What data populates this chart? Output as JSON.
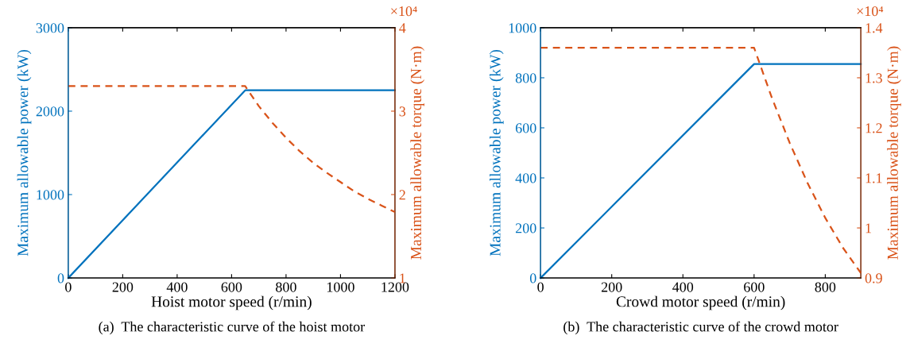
{
  "chart_data": [
    {
      "type": "line",
      "title": "(a)  The characteristic curve of the hoist motor",
      "xlabel": "Hoist motor speed (r/min)",
      "ylabel": "Maximum allowable power (kW)",
      "y2label": "Maximum allowable torque (N·m)",
      "annotations": [
        "×10⁴"
      ],
      "xlim": [
        0,
        1200
      ],
      "xticks": [
        0,
        200,
        400,
        600,
        800,
        1000,
        1200
      ],
      "ylim": [
        0,
        3000
      ],
      "yticks": [
        0,
        1000,
        2000,
        3000
      ],
      "y2lim": [
        1,
        4
      ],
      "y2ticks": [
        1,
        2,
        3,
        4
      ],
      "grid": false,
      "legend": false,
      "series": [
        {
          "color": "#0072bd",
          "line_style": "solid",
          "x": [
            0,
            650,
            1200
          ],
          "values": [
            0,
            2250,
            2250
          ]
        },
        {
          "color": "#d95319",
          "line_style": "dashed",
          "axis": "y2",
          "x": [
            0,
            650,
            700,
            750,
            800,
            850,
            900,
            950,
            1000,
            1050,
            1100,
            1150,
            1200
          ],
          "values": [
            3.3,
            3.3,
            3.06,
            2.86,
            2.68,
            2.52,
            2.38,
            2.26,
            2.15,
            2.04,
            1.95,
            1.87,
            1.79
          ]
        }
      ]
    },
    {
      "type": "line",
      "title": "(b)  The characteristic curve of the crowd motor",
      "xlabel": "Crowd motor speed (r/min)",
      "ylabel": "Maximum allowable power (kW)",
      "y2label": "Maximum allowable torque (N·m)",
      "annotations": [
        "×10⁴"
      ],
      "xlim": [
        0,
        900
      ],
      "xticks": [
        0,
        200,
        400,
        600,
        800
      ],
      "ylim": [
        0,
        1000
      ],
      "yticks": [
        0,
        200,
        400,
        600,
        800,
        1000
      ],
      "y2lim": [
        0.9,
        1.4
      ],
      "y2ticks": [
        0.9,
        1,
        1.1,
        1.2,
        1.3,
        1.4
      ],
      "grid": false,
      "legend": false,
      "series": [
        {
          "color": "#0072bd",
          "line_style": "solid",
          "x": [
            0,
            600,
            900
          ],
          "values": [
            0,
            855,
            855
          ]
        },
        {
          "color": "#d95319",
          "line_style": "dashed",
          "axis": "y2",
          "x": [
            0,
            600,
            650,
            700,
            750,
            800,
            850,
            900
          ],
          "values": [
            1.36,
            1.36,
            1.26,
            1.17,
            1.09,
            1.02,
            0.96,
            0.91
          ]
        }
      ]
    }
  ]
}
